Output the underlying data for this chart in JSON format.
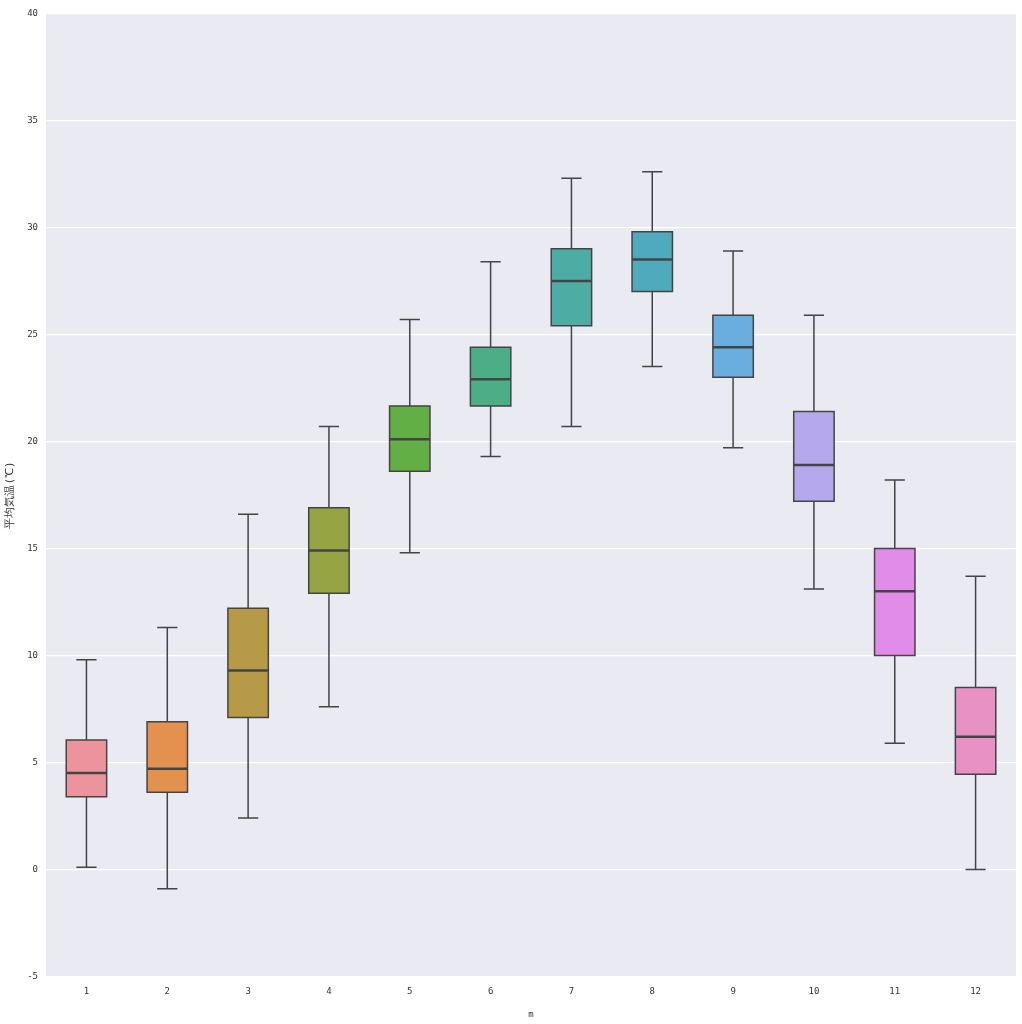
{
  "chart_data": {
    "type": "box",
    "xlabel": "m",
    "ylabel": "平均気温(℃)",
    "categories": [
      "1",
      "2",
      "3",
      "4",
      "5",
      "6",
      "7",
      "8",
      "9",
      "10",
      "11",
      "12"
    ],
    "colors": [
      "#ec949d",
      "#e3914f",
      "#b69a48",
      "#96a444",
      "#62b045",
      "#4bae87",
      "#4dada5",
      "#50aabd",
      "#6aaee0",
      "#b6a8ec",
      "#e08ce8",
      "#e891c4"
    ],
    "boxes": [
      {
        "low": 0.1,
        "q1": 3.4,
        "median": 4.5,
        "q3": 6.05,
        "high": 9.8
      },
      {
        "low": -0.9,
        "q1": 3.6,
        "median": 4.7,
        "q3": 6.9,
        "high": 11.3
      },
      {
        "low": 2.4,
        "q1": 7.1,
        "median": 9.3,
        "q3": 12.2,
        "high": 16.6
      },
      {
        "low": 7.6,
        "q1": 12.9,
        "median": 14.9,
        "q3": 16.9,
        "high": 20.7
      },
      {
        "low": 14.8,
        "q1": 18.6,
        "median": 20.1,
        "q3": 21.65,
        "high": 25.7
      },
      {
        "low": 19.3,
        "q1": 21.65,
        "median": 22.9,
        "q3": 24.4,
        "high": 28.4
      },
      {
        "low": 20.7,
        "q1": 25.4,
        "median": 27.5,
        "q3": 29.0,
        "high": 32.3
      },
      {
        "low": 23.5,
        "q1": 27.0,
        "median": 28.5,
        "q3": 29.8,
        "high": 32.6
      },
      {
        "low": 19.7,
        "q1": 23.0,
        "median": 24.4,
        "q3": 25.9,
        "high": 28.9
      },
      {
        "low": 13.1,
        "q1": 17.2,
        "median": 18.9,
        "q3": 21.4,
        "high": 25.9
      },
      {
        "low": 5.9,
        "q1": 10.0,
        "median": 13.0,
        "q3": 15.0,
        "high": 18.2
      },
      {
        "low": 0.0,
        "q1": 4.45,
        "median": 6.2,
        "q3": 8.5,
        "high": 13.7
      }
    ],
    "ylim": [
      -5,
      40
    ],
    "yticks": [
      -5,
      0,
      5,
      10,
      15,
      20,
      25,
      30,
      35,
      40
    ],
    "grid": "y"
  }
}
